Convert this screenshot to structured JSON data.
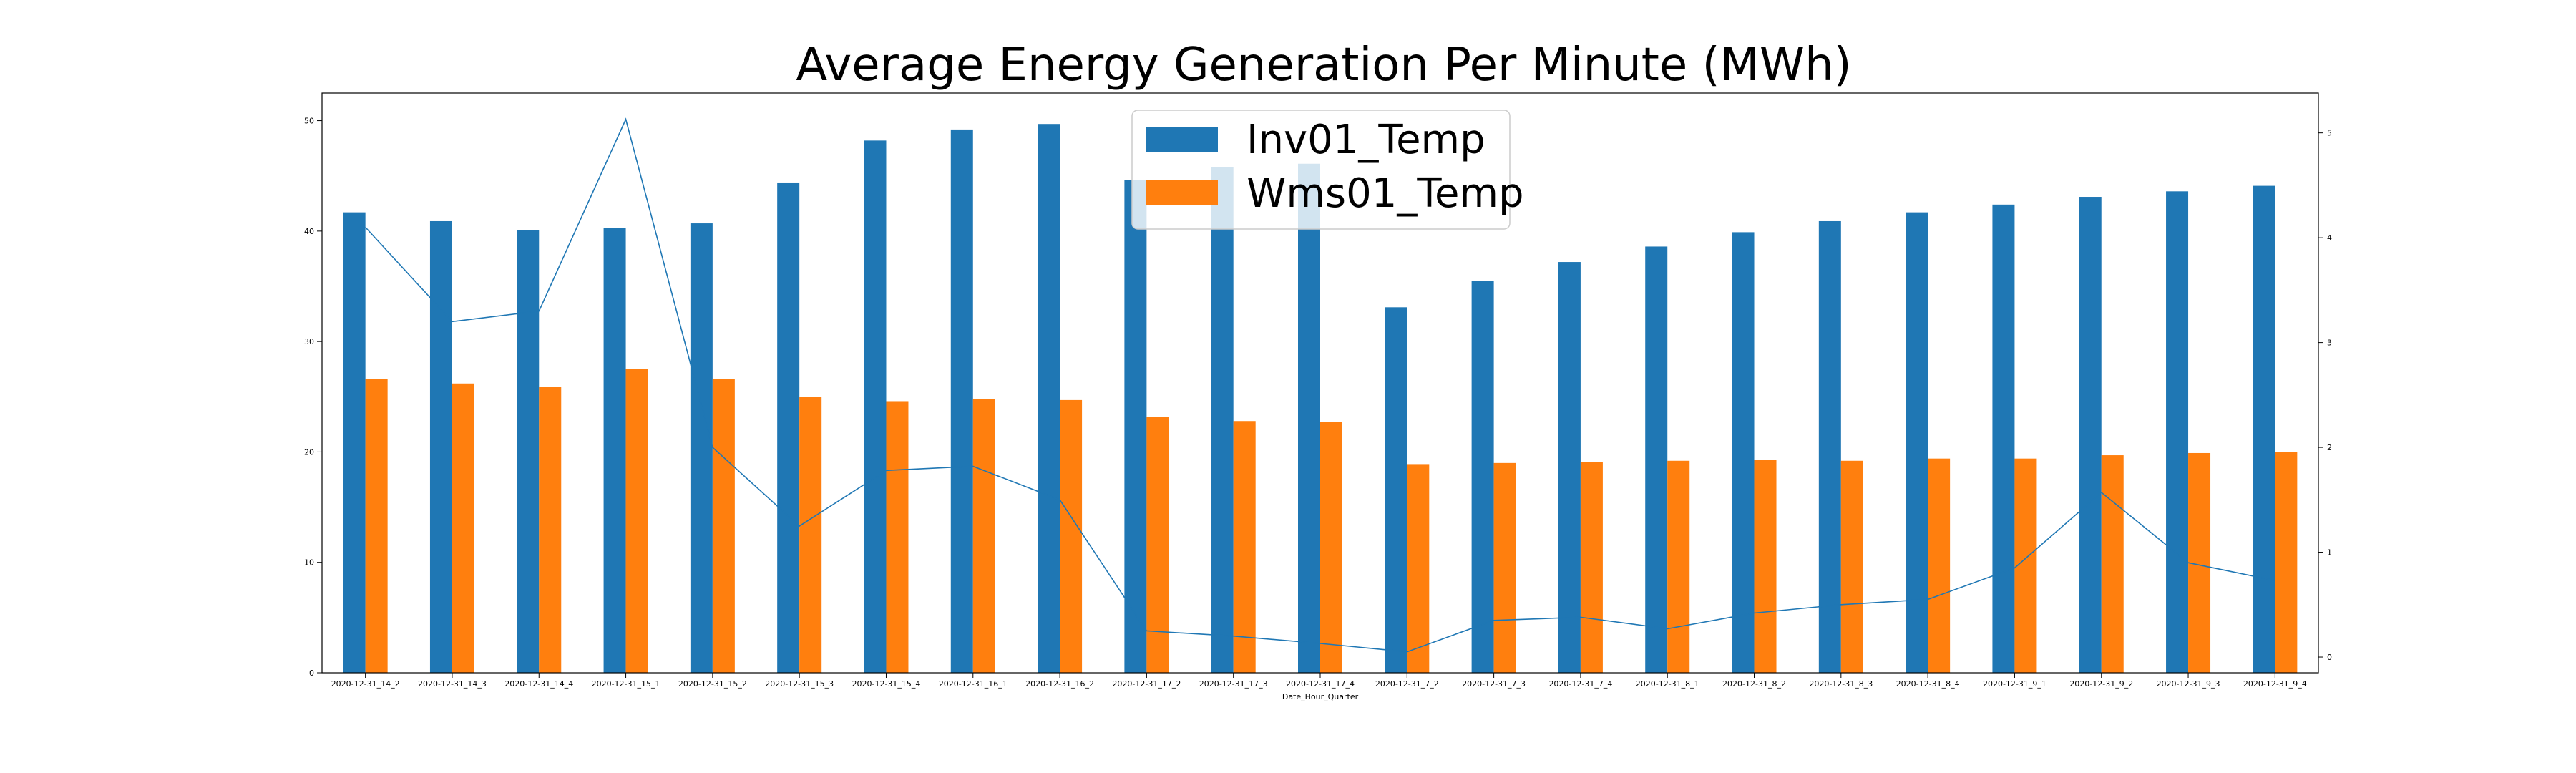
{
  "chart_data": {
    "type": "bar",
    "title": "Average Energy Generation Per Minute (MWh)",
    "xlabel": "Date_Hour_Quarter",
    "ylabel": "",
    "ylim": [
      0,
      52.5
    ],
    "y2lim": [
      -0.15,
      5.38
    ],
    "yticks": [
      0,
      10,
      20,
      30,
      40,
      50
    ],
    "y2ticks": [
      0,
      1,
      2,
      3,
      4,
      5
    ],
    "legend_position": "top-center",
    "categories": [
      "2020-12-31_14_2",
      "2020-12-31_14_3",
      "2020-12-31_14_4",
      "2020-12-31_15_1",
      "2020-12-31_15_2",
      "2020-12-31_15_3",
      "2020-12-31_15_4",
      "2020-12-31_16_1",
      "2020-12-31_16_2",
      "2020-12-31_17_2",
      "2020-12-31_17_3",
      "2020-12-31_17_4",
      "2020-12-31_7_2",
      "2020-12-31_7_3",
      "2020-12-31_7_4",
      "2020-12-31_8_1",
      "2020-12-31_8_2",
      "2020-12-31_8_3",
      "2020-12-31_8_4",
      "2020-12-31_9_1",
      "2020-12-31_9_2",
      "2020-12-31_9_3",
      "2020-12-31_9_4"
    ],
    "series": [
      {
        "name": "Inv01_Temp",
        "kind": "bar",
        "color": "#1f77b4",
        "values": [
          41.7,
          40.9,
          40.1,
          40.3,
          40.7,
          44.4,
          48.2,
          49.2,
          49.7,
          44.6,
          45.8,
          46.1,
          33.1,
          35.5,
          37.2,
          38.6,
          39.9,
          40.9,
          41.7,
          42.4,
          43.1,
          43.6,
          44.1
        ]
      },
      {
        "name": "Wms01_Temp",
        "kind": "bar",
        "color": "#ff7f0e",
        "values": [
          26.6,
          26.2,
          25.9,
          27.5,
          26.6,
          25.0,
          24.6,
          24.8,
          24.7,
          23.2,
          22.8,
          22.7,
          18.9,
          19.0,
          19.1,
          19.2,
          19.3,
          19.2,
          19.4,
          19.4,
          19.7,
          19.9,
          20.0
        ]
      },
      {
        "kind": "line",
        "axis": "right",
        "color": "#1f77b4",
        "values": [
          4.1,
          3.2,
          3.3,
          5.13,
          2.0,
          1.25,
          1.78,
          1.82,
          1.5,
          0.25,
          0.2,
          0.13,
          0.05,
          0.35,
          0.38,
          0.27,
          0.42,
          0.5,
          0.55,
          0.85,
          1.57,
          0.9,
          0.73
        ]
      }
    ]
  }
}
